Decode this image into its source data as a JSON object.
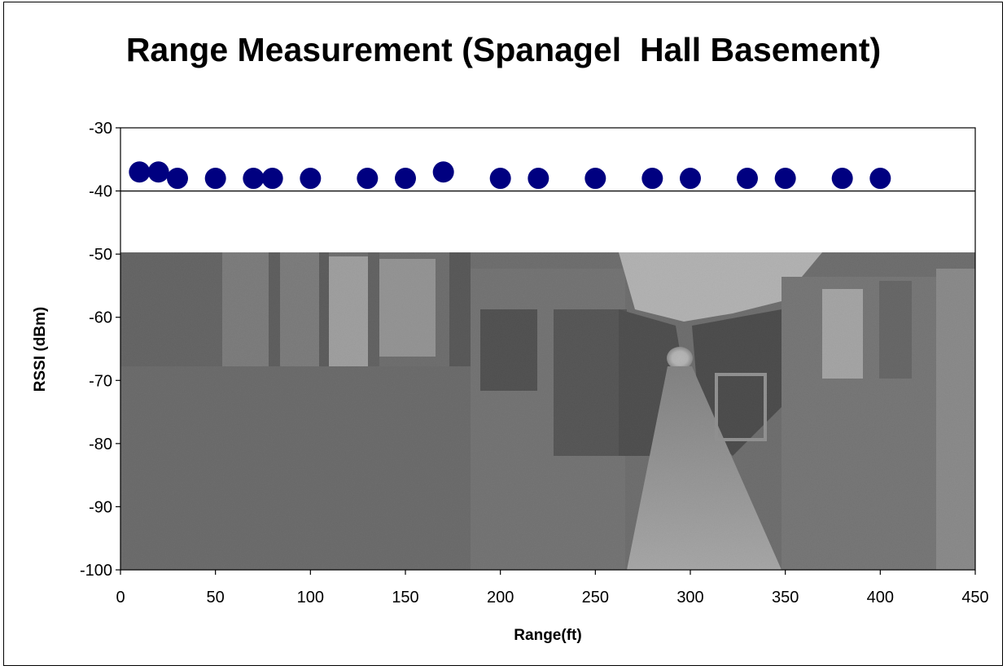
{
  "chart_data": {
    "type": "scatter",
    "title": "Range Measurement (Spanagel  Hall Basement)",
    "xlabel": "Range(ft)",
    "ylabel": "RSSI (dBm)",
    "xlim": [
      0,
      450
    ],
    "ylim": [
      -100,
      -30
    ],
    "x_ticks": [
      0,
      50,
      100,
      150,
      200,
      250,
      300,
      350,
      400,
      450
    ],
    "y_ticks": [
      -30,
      -40,
      -50,
      -60,
      -70,
      -80,
      -90,
      -100
    ],
    "grid": "horizontal at -40",
    "legend": "none",
    "background": "photograph of a basement hallway filling the plot area below -50",
    "series": [
      {
        "marker_color": "#000080",
        "x": [
          10,
          20,
          30,
          50,
          70,
          80,
          100,
          130,
          150,
          170,
          200,
          220,
          250,
          280,
          300,
          330,
          350,
          380,
          400
        ],
        "y": [
          -37,
          -37,
          -38,
          -38,
          -38,
          -38,
          -38,
          -38,
          -38,
          -37,
          -38,
          -38,
          -38,
          -38,
          -38,
          -38,
          -38,
          -38,
          -38
        ]
      }
    ]
  }
}
